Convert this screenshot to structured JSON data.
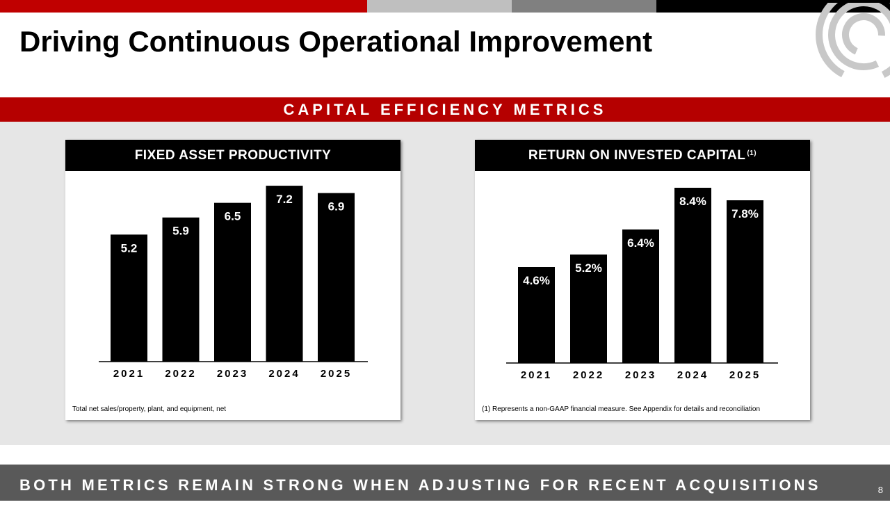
{
  "slide": {
    "title": "Driving Continuous Operational Improvement",
    "section_banner": "CAPITAL EFFICIENCY METRICS",
    "bottom_banner": "BOTH METRICS REMAIN STRONG WHEN ADJUSTING FOR RECENT ACQUISITIONS",
    "page_number": "8"
  },
  "colors": {
    "accent_red": "#c00000",
    "banner_red": "#b50000",
    "bar": "#000000",
    "bottom_bar": "#595959"
  },
  "chart_data": [
    {
      "type": "bar",
      "title": "FIXED ASSET PRODUCTIVITY",
      "title_sup": "",
      "categories": [
        "2021",
        "2022",
        "2023",
        "2024",
        "2025"
      ],
      "values": [
        5.2,
        5.9,
        6.5,
        7.2,
        6.9
      ],
      "labels": [
        "5.2",
        "5.9",
        "6.5",
        "7.2",
        "6.9"
      ],
      "xlabel": "",
      "ylabel": "",
      "ylim": [
        0,
        7.8
      ],
      "grid": false,
      "footnote": "Total net sales/property, plant, and equipment, net"
    },
    {
      "type": "bar",
      "title": "RETURN ON INVESTED CAPITAL",
      "title_sup": "(1)",
      "categories": [
        "2021",
        "2022",
        "2023",
        "2024",
        "2025"
      ],
      "values": [
        4.6,
        5.2,
        6.4,
        8.4,
        7.8
      ],
      "labels": [
        "4.6%",
        "5.2%",
        "6.4%",
        "8.4%",
        "7.8%"
      ],
      "xlabel": "",
      "ylabel": "",
      "ylim": [
        0,
        9.2
      ],
      "grid": false,
      "footnote": "(1) Represents a non-GAAP financial measure. See Appendix for details and reconciliation"
    }
  ]
}
